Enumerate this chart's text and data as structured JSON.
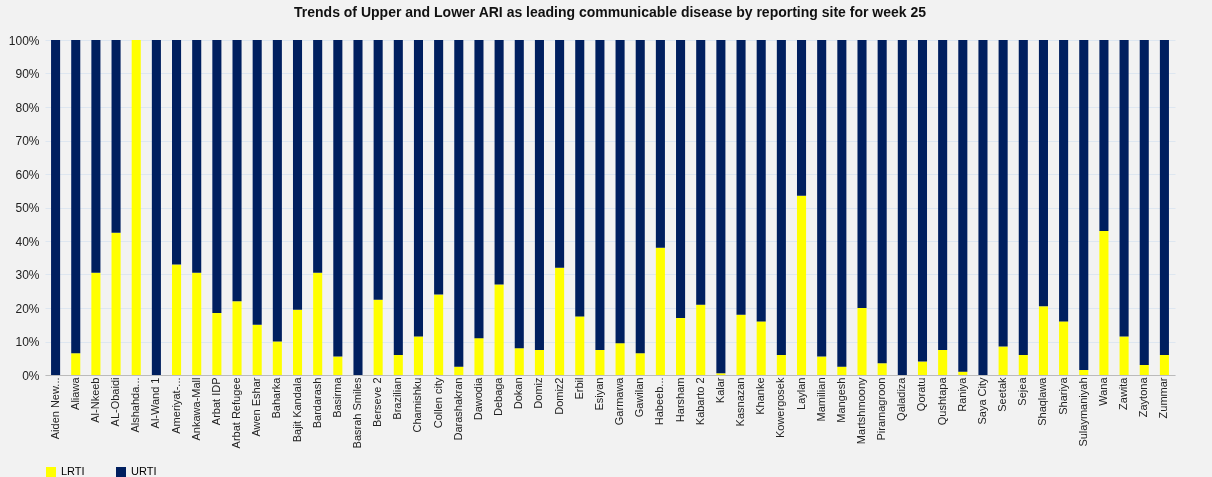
{
  "chart_data": {
    "type": "bar",
    "title": "Trends of Upper and Lower ARI as leading communicable disease by reporting site for week 25",
    "categories": [
      "Aiden  New...",
      "Aliawa",
      "Al-Nkeeb",
      "AL-Obaidi",
      "Alshahda...",
      "Al-Wand 1",
      "Ameriyat-...",
      "Ankawa-Mall",
      "Arbat IDP",
      "Arbat Refugee",
      "Awen Eshar",
      "Baharka",
      "Bajit Kandala",
      "Bardarash",
      "Basirma",
      "Basrah Smiles",
      "Berseve 2",
      "Brazilian",
      "Chamishku",
      "Collen city",
      "Darashakran",
      "Dawodia",
      "Debaga",
      "Dokan",
      "Domiz",
      "Domiz2",
      "Erbil",
      "Esiyan",
      "Garmawa",
      "Gawilan",
      "Habeeb...",
      "Harsham",
      "Kabarto 2",
      "Kalar",
      "Kasnazan",
      "Khanke",
      "Kowergosek",
      "Laylan",
      "Mamilian",
      "Mangesh",
      "Martshmoony",
      "Piramagroon",
      "Qaladiza",
      "Qoratu",
      "Qushtapa",
      "Raniya",
      "Saya City",
      "Seetak",
      "Sejea",
      "Shaqlawa",
      "Shariya",
      "Sulaymaniyah",
      "Wana",
      "Zawita",
      "Zaytona",
      "Zummar"
    ],
    "series": [
      {
        "name": "LRTI",
        "color": "#ffff00",
        "values": [
          0,
          6.5,
          30.5,
          42.5,
          100,
          0,
          33,
          30.5,
          18.5,
          22,
          15,
          10,
          19.5,
          30.5,
          5.5,
          0,
          22.5,
          6,
          11.5,
          24,
          2.5,
          11,
          27,
          8,
          7.5,
          32,
          17.5,
          7.5,
          9.5,
          6.5,
          38,
          17,
          21,
          0.5,
          18,
          16,
          6,
          53.5,
          5.5,
          2.5,
          20,
          3.5,
          0,
          4,
          7.5,
          1,
          0,
          8.5,
          6,
          20.5,
          16,
          1.5,
          43,
          11.5,
          3,
          6
        ]
      },
      {
        "name": "URTI",
        "color": "#001f5f",
        "values": [
          100,
          93.5,
          69.5,
          57.5,
          0,
          100,
          67,
          69.5,
          81.5,
          78,
          85,
          90,
          80.5,
          69.5,
          94.5,
          100,
          77.5,
          94,
          88.5,
          76,
          97.5,
          89,
          73,
          92,
          92.5,
          68,
          82.5,
          92.5,
          90.5,
          93.5,
          62,
          83,
          79,
          99.5,
          82,
          84,
          94,
          46.5,
          94.5,
          97.5,
          80,
          96.5,
          100,
          96,
          92.5,
          99,
          100,
          91.5,
          94,
          79.5,
          84,
          98.5,
          57,
          88.5,
          97,
          94
        ]
      }
    ],
    "stacked": true,
    "ylim": [
      0,
      100
    ],
    "yticks": [
      {
        "value": 0,
        "label": "0%"
      },
      {
        "value": 10,
        "label": "10%"
      },
      {
        "value": 20,
        "label": "20%"
      },
      {
        "value": 30,
        "label": "30%"
      },
      {
        "value": 40,
        "label": "40%"
      },
      {
        "value": 50,
        "label": "50%"
      },
      {
        "value": 60,
        "label": "60%"
      },
      {
        "value": 70,
        "label": "70%"
      },
      {
        "value": 80,
        "label": "80%"
      },
      {
        "value": 90,
        "label": "90%"
      },
      {
        "value": 100,
        "label": "100%"
      }
    ],
    "grid": "y",
    "legend": "bottom"
  }
}
